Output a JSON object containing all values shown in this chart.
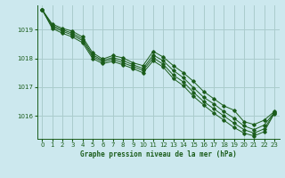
{
  "title": "Graphe pression niveau de la mer (hPa)",
  "background_color": "#cce8ee",
  "grid_color": "#aacccc",
  "line_color": "#1a5c1a",
  "xlim": [
    -0.5,
    23.5
  ],
  "ylim": [
    1015.2,
    1019.85
  ],
  "yticks": [
    1016,
    1017,
    1018,
    1019
  ],
  "xticks": [
    0,
    1,
    2,
    3,
    4,
    5,
    6,
    7,
    8,
    9,
    10,
    11,
    12,
    13,
    14,
    15,
    16,
    17,
    18,
    19,
    20,
    21,
    22,
    23
  ],
  "series": [
    [
      1019.7,
      1019.2,
      1019.05,
      1018.95,
      1018.75,
      1018.2,
      1017.98,
      1018.1,
      1018.02,
      1017.85,
      1017.75,
      1018.25,
      1018.05,
      1017.75,
      1017.5,
      1017.2,
      1016.85,
      1016.6,
      1016.35,
      1016.2,
      1015.8,
      1015.7,
      1015.85,
      1016.15
    ],
    [
      1019.7,
      1019.15,
      1019.0,
      1018.88,
      1018.68,
      1018.13,
      1017.93,
      1018.03,
      1017.93,
      1017.78,
      1017.65,
      1018.12,
      1017.92,
      1017.58,
      1017.33,
      1016.98,
      1016.65,
      1016.42,
      1016.15,
      1015.92,
      1015.65,
      1015.52,
      1015.68,
      1016.12
    ],
    [
      1019.7,
      1019.1,
      1018.95,
      1018.82,
      1018.62,
      1018.07,
      1017.88,
      1017.97,
      1017.85,
      1017.72,
      1017.58,
      1018.02,
      1017.8,
      1017.42,
      1017.18,
      1016.82,
      1016.5,
      1016.25,
      1016.0,
      1015.75,
      1015.52,
      1015.4,
      1015.55,
      1016.1
    ],
    [
      1019.7,
      1019.05,
      1018.88,
      1018.75,
      1018.55,
      1018.0,
      1017.82,
      1017.9,
      1017.78,
      1017.65,
      1017.5,
      1017.92,
      1017.7,
      1017.3,
      1017.05,
      1016.68,
      1016.38,
      1016.1,
      1015.85,
      1015.6,
      1015.4,
      1015.3,
      1015.45,
      1016.08
    ]
  ]
}
